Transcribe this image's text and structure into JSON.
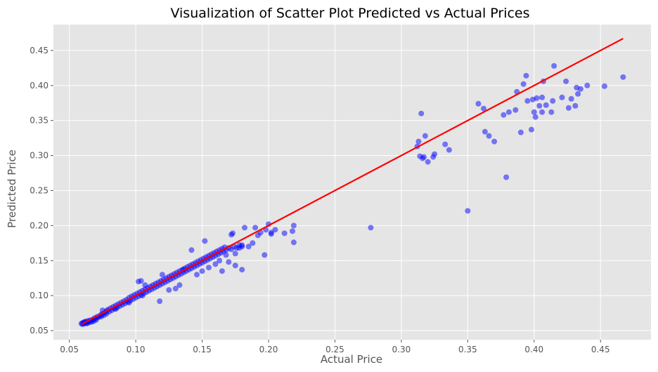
{
  "chart_data": {
    "type": "scatter",
    "title": "Visualization of Scatter Plot Predicted vs Actual Prices",
    "xlabel": "Actual Price",
    "ylabel": "Predicted Price",
    "xlim": [
      0.038,
      0.488
    ],
    "ylim": [
      0.037,
      0.487
    ],
    "xticks": [
      "0.05",
      "0.10",
      "0.15",
      "0.20",
      "0.25",
      "0.30",
      "0.35",
      "0.40",
      "0.45"
    ],
    "yticks": [
      "0.05",
      "0.10",
      "0.15",
      "0.20",
      "0.25",
      "0.30",
      "0.35",
      "0.40",
      "0.45"
    ],
    "grid": true,
    "background": "#e5e5e5",
    "grid_color": "#ffffff",
    "point_color": "#0000ff",
    "point_opacity": 0.5,
    "line_color": "#ff0000",
    "reference_line": {
      "x": [
        0.059,
        0.467
      ],
      "y": [
        0.059,
        0.467
      ]
    },
    "series": [
      {
        "points": [
          [
            0.059,
            0.06
          ],
          [
            0.06,
            0.061
          ],
          [
            0.06,
            0.059
          ],
          [
            0.061,
            0.062
          ],
          [
            0.061,
            0.06
          ],
          [
            0.062,
            0.061
          ],
          [
            0.062,
            0.063
          ],
          [
            0.063,
            0.062
          ],
          [
            0.063,
            0.06
          ],
          [
            0.064,
            0.064
          ],
          [
            0.064,
            0.061
          ],
          [
            0.065,
            0.063
          ],
          [
            0.066,
            0.065
          ],
          [
            0.066,
            0.062
          ],
          [
            0.067,
            0.064
          ],
          [
            0.068,
            0.066
          ],
          [
            0.068,
            0.063
          ],
          [
            0.069,
            0.068
          ],
          [
            0.07,
            0.067
          ],
          [
            0.07,
            0.065
          ],
          [
            0.071,
            0.07
          ],
          [
            0.072,
            0.069
          ],
          [
            0.073,
            0.071
          ],
          [
            0.074,
            0.073
          ],
          [
            0.074,
            0.07
          ],
          [
            0.075,
            0.074
          ],
          [
            0.076,
            0.072
          ],
          [
            0.077,
            0.076
          ],
          [
            0.078,
            0.078
          ],
          [
            0.078,
            0.074
          ],
          [
            0.079,
            0.08
          ],
          [
            0.08,
            0.077
          ],
          [
            0.081,
            0.082
          ],
          [
            0.082,
            0.079
          ],
          [
            0.083,
            0.084
          ],
          [
            0.084,
            0.081
          ],
          [
            0.085,
            0.086
          ],
          [
            0.086,
            0.083
          ],
          [
            0.087,
            0.088
          ],
          [
            0.088,
            0.085
          ],
          [
            0.089,
            0.09
          ],
          [
            0.09,
            0.087
          ],
          [
            0.091,
            0.092
          ],
          [
            0.092,
            0.089
          ],
          [
            0.093,
            0.094
          ],
          [
            0.094,
            0.091
          ],
          [
            0.095,
            0.097
          ],
          [
            0.096,
            0.093
          ],
          [
            0.097,
            0.099
          ],
          [
            0.098,
            0.095
          ],
          [
            0.099,
            0.101
          ],
          [
            0.1,
            0.097
          ],
          [
            0.101,
            0.103
          ],
          [
            0.102,
            0.099
          ],
          [
            0.103,
            0.105
          ],
          [
            0.104,
            0.101
          ],
          [
            0.105,
            0.107
          ],
          [
            0.106,
            0.103
          ],
          [
            0.107,
            0.109
          ],
          [
            0.108,
            0.105
          ],
          [
            0.109,
            0.111
          ],
          [
            0.11,
            0.107
          ],
          [
            0.111,
            0.113
          ],
          [
            0.112,
            0.109
          ],
          [
            0.113,
            0.115
          ],
          [
            0.114,
            0.111
          ],
          [
            0.115,
            0.117
          ],
          [
            0.116,
            0.113
          ],
          [
            0.117,
            0.119
          ],
          [
            0.118,
            0.115
          ],
          [
            0.119,
            0.121
          ],
          [
            0.12,
            0.117
          ],
          [
            0.121,
            0.123
          ],
          [
            0.122,
            0.119
          ],
          [
            0.123,
            0.125
          ],
          [
            0.124,
            0.121
          ],
          [
            0.125,
            0.127
          ],
          [
            0.126,
            0.123
          ],
          [
            0.127,
            0.129
          ],
          [
            0.128,
            0.125
          ],
          [
            0.129,
            0.131
          ],
          [
            0.13,
            0.127
          ],
          [
            0.131,
            0.133
          ],
          [
            0.132,
            0.129
          ],
          [
            0.133,
            0.135
          ],
          [
            0.134,
            0.131
          ],
          [
            0.135,
            0.137
          ],
          [
            0.136,
            0.133
          ],
          [
            0.137,
            0.139
          ],
          [
            0.138,
            0.135
          ],
          [
            0.139,
            0.141
          ],
          [
            0.14,
            0.137
          ],
          [
            0.141,
            0.143
          ],
          [
            0.142,
            0.139
          ],
          [
            0.143,
            0.145
          ],
          [
            0.144,
            0.141
          ],
          [
            0.145,
            0.147
          ],
          [
            0.146,
            0.143
          ],
          [
            0.147,
            0.149
          ],
          [
            0.148,
            0.145
          ],
          [
            0.149,
            0.151
          ],
          [
            0.15,
            0.147
          ],
          [
            0.151,
            0.153
          ],
          [
            0.152,
            0.149
          ],
          [
            0.153,
            0.155
          ],
          [
            0.154,
            0.151
          ],
          [
            0.155,
            0.157
          ],
          [
            0.156,
            0.153
          ],
          [
            0.157,
            0.159
          ],
          [
            0.158,
            0.155
          ],
          [
            0.159,
            0.161
          ],
          [
            0.16,
            0.157
          ],
          [
            0.161,
            0.163
          ],
          [
            0.162,
            0.159
          ],
          [
            0.163,
            0.165
          ],
          [
            0.164,
            0.161
          ],
          [
            0.165,
            0.167
          ],
          [
            0.166,
            0.163
          ],
          [
            0.167,
            0.169
          ],
          [
            0.168,
            0.165
          ],
          [
            0.17,
            0.168
          ],
          [
            0.172,
            0.166
          ],
          [
            0.174,
            0.17
          ],
          [
            0.176,
            0.168
          ],
          [
            0.178,
            0.172
          ],
          [
            0.18,
            0.17
          ],
          [
            0.075,
            0.079
          ],
          [
            0.085,
            0.081
          ],
          [
            0.095,
            0.09
          ],
          [
            0.105,
            0.1
          ],
          [
            0.102,
            0.12
          ],
          [
            0.104,
            0.121
          ],
          [
            0.107,
            0.115
          ],
          [
            0.118,
            0.092
          ],
          [
            0.13,
            0.11
          ],
          [
            0.12,
            0.13
          ],
          [
            0.125,
            0.108
          ],
          [
            0.133,
            0.115
          ],
          [
            0.136,
            0.137
          ],
          [
            0.142,
            0.165
          ],
          [
            0.146,
            0.13
          ],
          [
            0.15,
            0.135
          ],
          [
            0.152,
            0.178
          ],
          [
            0.155,
            0.14
          ],
          [
            0.16,
            0.145
          ],
          [
            0.163,
            0.15
          ],
          [
            0.165,
            0.135
          ],
          [
            0.168,
            0.158
          ],
          [
            0.17,
            0.148
          ],
          [
            0.172,
            0.187
          ],
          [
            0.173,
            0.189
          ],
          [
            0.175,
            0.16
          ],
          [
            0.178,
            0.168
          ],
          [
            0.18,
            0.172
          ],
          [
            0.182,
            0.197
          ],
          [
            0.185,
            0.17
          ],
          [
            0.188,
            0.175
          ],
          [
            0.19,
            0.197
          ],
          [
            0.192,
            0.186
          ],
          [
            0.194,
            0.19
          ],
          [
            0.197,
            0.158
          ],
          [
            0.198,
            0.194
          ],
          [
            0.2,
            0.202
          ],
          [
            0.202,
            0.188
          ],
          [
            0.202,
            0.19
          ],
          [
            0.205,
            0.194
          ],
          [
            0.212,
            0.189
          ],
          [
            0.218,
            0.192
          ],
          [
            0.219,
            0.2
          ],
          [
            0.219,
            0.176
          ],
          [
            0.175,
            0.143
          ],
          [
            0.18,
            0.137
          ],
          [
            0.277,
            0.197
          ],
          [
            0.312,
            0.313
          ],
          [
            0.313,
            0.32
          ],
          [
            0.314,
            0.299
          ],
          [
            0.315,
            0.36
          ],
          [
            0.316,
            0.296
          ],
          [
            0.317,
            0.298
          ],
          [
            0.318,
            0.328
          ],
          [
            0.32,
            0.291
          ],
          [
            0.324,
            0.298
          ],
          [
            0.325,
            0.302
          ],
          [
            0.333,
            0.316
          ],
          [
            0.336,
            0.308
          ],
          [
            0.35,
            0.221
          ],
          [
            0.358,
            0.374
          ],
          [
            0.362,
            0.367
          ],
          [
            0.363,
            0.334
          ],
          [
            0.366,
            0.328
          ],
          [
            0.37,
            0.32
          ],
          [
            0.377,
            0.358
          ],
          [
            0.379,
            0.269
          ],
          [
            0.381,
            0.362
          ],
          [
            0.386,
            0.365
          ],
          [
            0.387,
            0.391
          ],
          [
            0.39,
            0.333
          ],
          [
            0.392,
            0.402
          ],
          [
            0.394,
            0.414
          ],
          [
            0.395,
            0.378
          ],
          [
            0.398,
            0.337
          ],
          [
            0.399,
            0.38
          ],
          [
            0.4,
            0.362
          ],
          [
            0.401,
            0.355
          ],
          [
            0.402,
            0.382
          ],
          [
            0.404,
            0.371
          ],
          [
            0.406,
            0.362
          ],
          [
            0.406,
            0.383
          ],
          [
            0.407,
            0.406
          ],
          [
            0.409,
            0.372
          ],
          [
            0.413,
            0.362
          ],
          [
            0.414,
            0.378
          ],
          [
            0.415,
            0.428
          ],
          [
            0.421,
            0.383
          ],
          [
            0.424,
            0.406
          ],
          [
            0.426,
            0.368
          ],
          [
            0.428,
            0.381
          ],
          [
            0.431,
            0.371
          ],
          [
            0.432,
            0.397
          ],
          [
            0.433,
            0.388
          ],
          [
            0.435,
            0.395
          ],
          [
            0.44,
            0.4
          ],
          [
            0.453,
            0.399
          ],
          [
            0.467,
            0.412
          ]
        ]
      }
    ]
  }
}
